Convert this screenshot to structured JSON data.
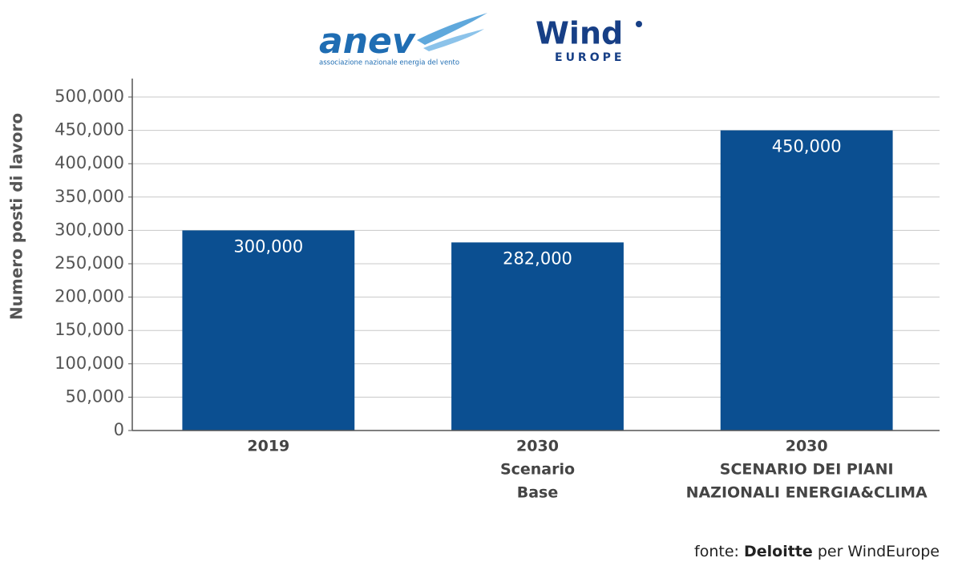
{
  "logos": {
    "anev": "anev",
    "anev_caption": "associazione nazionale energia del vento",
    "wind": "Wind",
    "europe": "EUROPE"
  },
  "chart_data": {
    "type": "bar",
    "y_label": "Numero posti di lavoro",
    "categories": [
      [
        "2019"
      ],
      [
        "2030",
        "Scenario",
        "Base"
      ],
      [
        "2030",
        "SCENARIO DEI PIANI",
        "NAZIONALI ENERGIA&CLIMA"
      ]
    ],
    "values": [
      300000,
      282000,
      450000
    ],
    "value_labels": [
      "300,000",
      "282,000",
      "450,000"
    ],
    "color": "#0b4f91",
    "ylim": [
      0,
      500000
    ],
    "yticks": [
      0,
      {
        "value": 50000,
        "label": "50,000"
      },
      {
        "value": 100000,
        "label": "100,000"
      },
      {
        "value": 150000,
        "label": "150,000"
      },
      {
        "value": 200000,
        "label": "200,000"
      },
      {
        "value": 250000,
        "label": "250,000"
      },
      {
        "value": 300000,
        "label": "300,000"
      },
      {
        "value": 350000,
        "label": "350,000"
      },
      {
        "value": 400000,
        "label": "400,000"
      },
      {
        "value": 450000,
        "label": "450,000"
      },
      {
        "value": 500000,
        "label": "500,000"
      }
    ],
    "grid": true
  },
  "source": {
    "prefix": "fonte:",
    "bold": "Deloitte",
    "suffix": "per WindEurope"
  }
}
